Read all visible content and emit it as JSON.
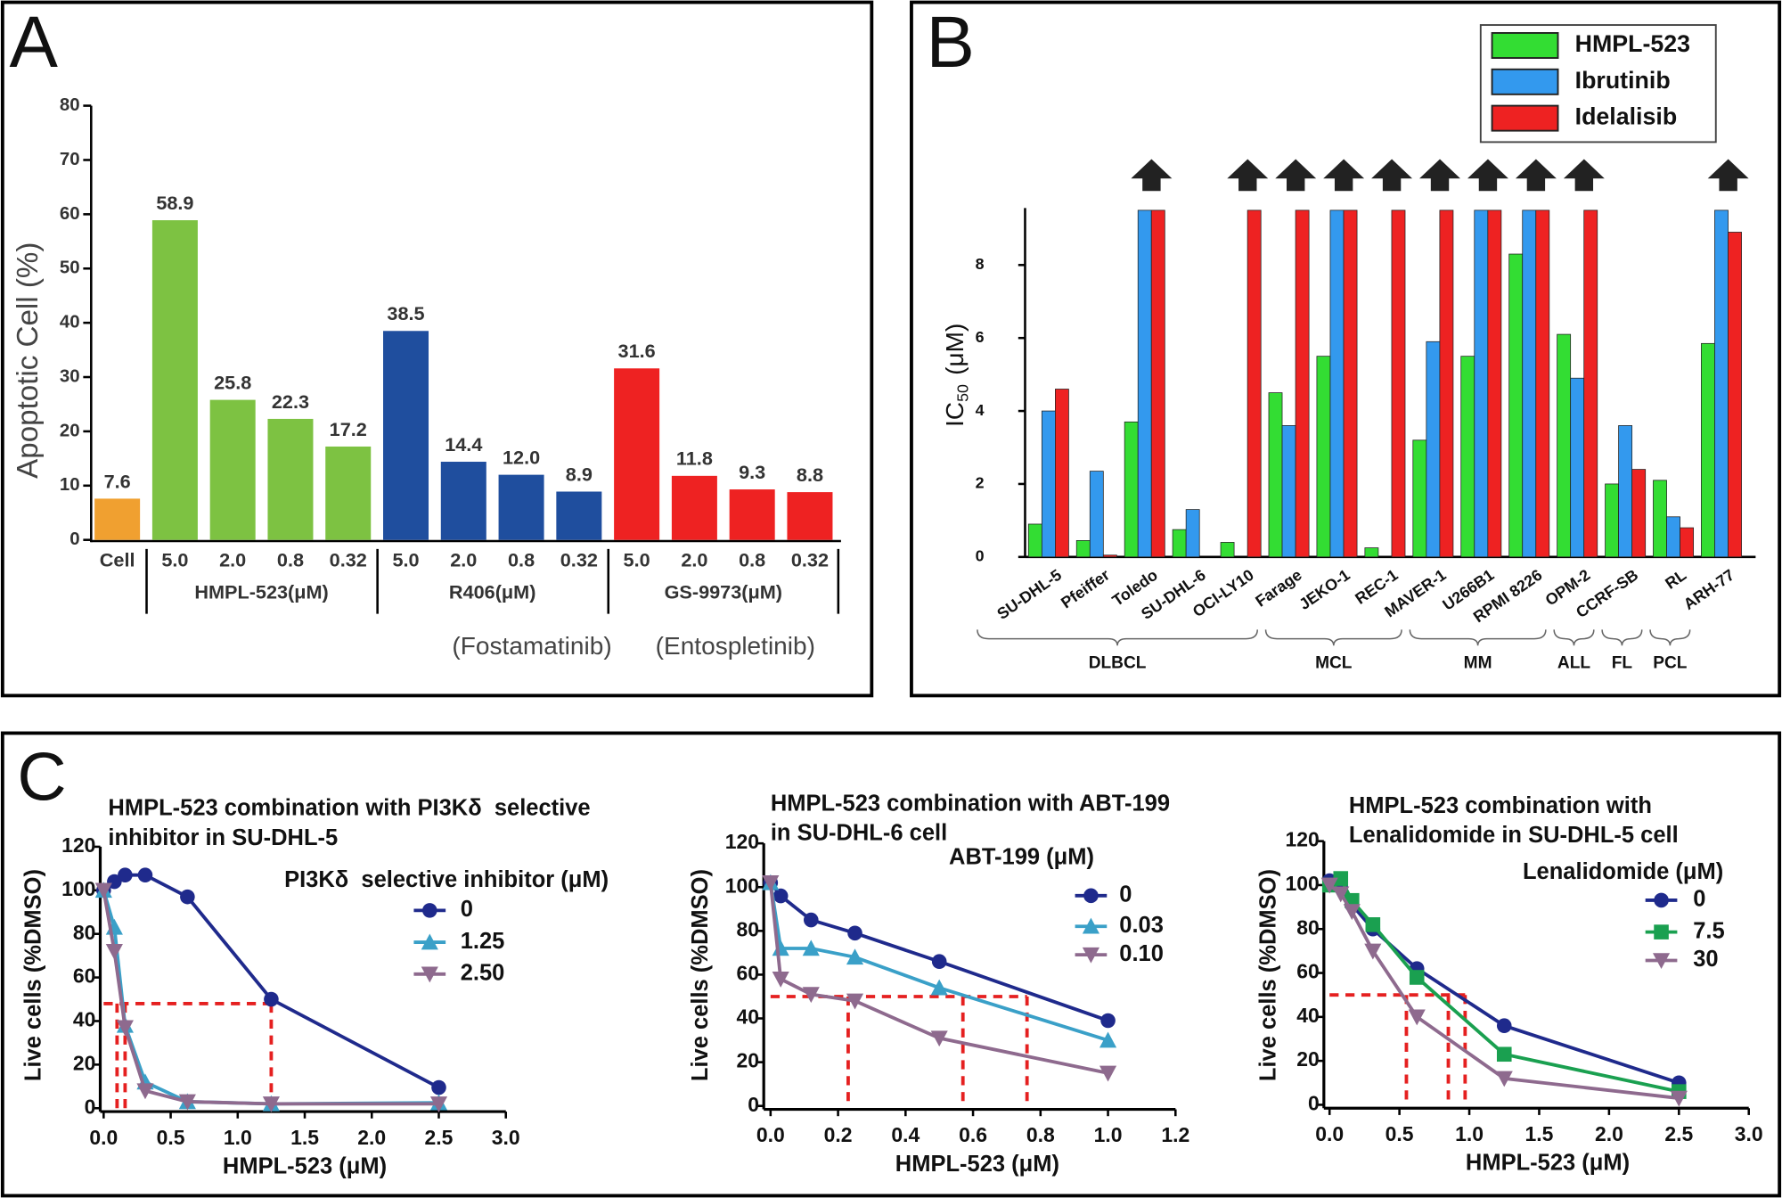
{
  "chart_data": [
    {
      "type": "bar",
      "panel": "A",
      "ylabel": "Apoptotic Cell (%)",
      "categories": [
        "Cell",
        "5.0",
        "2.0",
        "0.8",
        "0.32",
        "5.0",
        "2.0",
        "0.8",
        "0.32",
        "5.0",
        "2.0",
        "0.8",
        "0.32"
      ],
      "values": [
        7.6,
        58.9,
        25.8,
        22.3,
        17.2,
        38.5,
        14.4,
        12.0,
        8.9,
        31.6,
        11.8,
        9.3,
        8.8
      ],
      "value_labels": [
        "7.6",
        "58.9",
        "25.8",
        "22.3",
        "17.2",
        "38.5",
        "14.4",
        "12.0",
        "8.9",
        "31.6",
        "11.8",
        "9.3",
        "8.8"
      ],
      "colors": [
        "#f0a030",
        "#7dc242",
        "#7dc242",
        "#7dc242",
        "#7dc242",
        "#1f4e9e",
        "#1f4e9e",
        "#1f4e9e",
        "#1f4e9e",
        "#ee2222",
        "#ee2222",
        "#ee2222",
        "#ee2222"
      ],
      "groups": [
        {
          "label": null,
          "count": 1
        },
        {
          "label": "HMPL-523(μM)",
          "count": 4
        },
        {
          "label": "R406(μM)",
          "count": 4
        },
        {
          "label": "GS-9973(μM)",
          "count": 4
        }
      ],
      "annotations": [
        "(Fostamatinib)",
        "(Entospletinib)"
      ],
      "ylim": [
        0,
        80
      ],
      "yticks": [
        0,
        10,
        20,
        30,
        40,
        50,
        60,
        70,
        80
      ]
    },
    {
      "type": "grouped_bar",
      "panel": "B",
      "ylabel": {
        "text": "IC",
        "subscript": "50",
        "unit": "(μM)"
      },
      "categories": [
        "SU-DHL-5",
        "Pfeiffer",
        "Toledo",
        "SU-DHL-6",
        "OCI-LY10",
        "Farage",
        "JEKO-1",
        "REC-1",
        "MAVER-1",
        "U266B1",
        "RPMI 8226",
        "OPM-2",
        "CCRF-SB",
        "RL",
        "ARH-77"
      ],
      "series": [
        {
          "name": "HMPL-523",
          "color": "#33dd33",
          "values": [
            0.9,
            0.45,
            3.7,
            0.75,
            0.4,
            4.5,
            5.5,
            0.25,
            3.2,
            5.5,
            8.3,
            6.1,
            2.0,
            2.1,
            5.85
          ]
        },
        {
          "name": "Ibrutinib",
          "color": "#3399ee",
          "values": [
            4.0,
            2.35,
            9.5,
            1.3,
            null,
            3.6,
            9.5,
            null,
            5.9,
            9.5,
            9.5,
            4.9,
            3.6,
            1.1,
            9.5
          ]
        },
        {
          "name": "Idelalisib",
          "color": "#ee2222",
          "values": [
            4.6,
            0.05,
            9.5,
            null,
            9.5,
            9.5,
            9.5,
            9.5,
            9.5,
            9.5,
            9.5,
            9.5,
            2.4,
            0.8,
            8.9
          ]
        }
      ],
      "groups": [
        {
          "label": "DLBCL",
          "count": 6
        },
        {
          "label": "MCL",
          "count": 3
        },
        {
          "label": "MM",
          "count": 3
        },
        {
          "label": "ALL",
          "count": 1
        },
        {
          "label": "FL",
          "count": 1
        },
        {
          "label": "PCL",
          "count": 1
        }
      ],
      "ylim": [
        0,
        9.5
      ],
      "yticks": [
        0,
        2,
        4,
        6,
        8
      ]
    },
    {
      "type": "line",
      "panel": "C",
      "title": [
        "HMPL-523 combination with PI3Kδ  selective",
        "inhibitor in SU-DHL-5"
      ],
      "legend_title": "PI3Kδ  selective inhibitor (μM)",
      "xlabel": "HMPL-523 (μM)",
      "ylabel": "Live cells (%DMSO)",
      "x": [
        0,
        0.08,
        0.16,
        0.31,
        0.625,
        1.25,
        2.5
      ],
      "series": [
        {
          "name": "0",
          "color": "#1f2a8c",
          "marker": "circle",
          "values": [
            100,
            104,
            107,
            107,
            97,
            50,
            9.5
          ]
        },
        {
          "name": "1.25",
          "color": "#3aa0c8",
          "marker": "triangle-up",
          "values": [
            100,
            83,
            38,
            12,
            3,
            2,
            2.5
          ]
        },
        {
          "name": "2.50",
          "color": "#8e6a8e",
          "marker": "triangle-down",
          "values": [
            100,
            72,
            37,
            8,
            3,
            2,
            2
          ]
        }
      ],
      "dashed_lines": {
        "y": 48,
        "x": [
          0.1,
          0.16,
          1.25
        ]
      },
      "xlim": [
        0,
        3
      ],
      "xticks": [
        {
          "value": 0,
          "label": "0.0"
        },
        0.5,
        {
          "value": 1,
          "label": "1.0"
        },
        1.5,
        {
          "value": 2,
          "label": "2.0"
        },
        2.5,
        {
          "value": 3,
          "label": "3.0"
        }
      ],
      "ylim": [
        0,
        120
      ],
      "yticks": [
        0,
        20,
        40,
        60,
        80,
        100,
        120
      ]
    },
    {
      "type": "line",
      "title": [
        "HMPL-523 combination with ABT-199",
        "in SU-DHL-6 cell"
      ],
      "legend_title": "ABT-199 (μM)",
      "xlabel": "HMPL-523 (μM)",
      "ylabel": "Live cells (%DMSO)",
      "x": [
        0,
        0.03,
        0.12,
        0.25,
        0.5,
        1.0
      ],
      "series": [
        {
          "name": "0",
          "color": "#1f2a8c",
          "marker": "circle",
          "values": [
            102,
            96,
            85,
            79,
            66,
            39
          ]
        },
        {
          "name": "0.03",
          "color": "#3aa0c8",
          "marker": "triangle-up",
          "values": [
            102,
            72,
            72,
            68,
            54,
            30
          ]
        },
        {
          "name": "0.10",
          "color": "#8e6a8e",
          "marker": "triangle-down",
          "values": [
            102,
            58,
            51,
            48,
            31,
            15
          ]
        }
      ],
      "dashed_lines": {
        "y": 50,
        "x": [
          0.23,
          0.57,
          0.76
        ]
      },
      "xlim": [
        0,
        1.2
      ],
      "xticks": [
        {
          "value": 0,
          "label": "0.0"
        },
        0.2,
        0.4,
        0.6,
        0.8,
        {
          "value": 1,
          "label": "1.0"
        },
        1.2
      ],
      "ylim": [
        0,
        120
      ],
      "yticks": [
        0,
        20,
        40,
        60,
        80,
        100,
        120
      ]
    },
    {
      "type": "line",
      "title": [
        "HMPL-523 combination with",
        "Lenalidomide in SU-DHL-5 cell"
      ],
      "legend_title": "Lenalidomide (μM)",
      "xlabel": "HMPL-523 (μM)",
      "ylabel": "Live cells (%DMSO)",
      "x": [
        0,
        0.08,
        0.16,
        0.31,
        0.625,
        1.25,
        2.5
      ],
      "series": [
        {
          "name": "0",
          "color": "#1f2a8c",
          "marker": "circle",
          "values": [
            102,
            99,
            91,
            80,
            62,
            36,
            10
          ]
        },
        {
          "name": "7.5",
          "color": "#1aa050",
          "marker": "square",
          "values": [
            100,
            103,
            93,
            82,
            58,
            23,
            6
          ]
        },
        {
          "name": "30",
          "color": "#8e6a8e",
          "marker": "triangle-down",
          "values": [
            100,
            96,
            88,
            70,
            40,
            12,
            3
          ]
        }
      ],
      "dashed_lines": {
        "y": 50,
        "x": [
          0.55,
          0.85,
          0.97
        ]
      },
      "xlim": [
        0,
        3
      ],
      "xticks": [
        {
          "value": 0,
          "label": "0.0"
        },
        0.5,
        {
          "value": 1,
          "label": "1.0"
        },
        1.5,
        {
          "value": 2,
          "label": "2.0"
        },
        2.5,
        {
          "value": 3,
          "label": "3.0"
        }
      ],
      "ylim": [
        0,
        120
      ],
      "yticks": [
        0,
        20,
        40,
        60,
        80,
        100,
        120
      ]
    }
  ]
}
